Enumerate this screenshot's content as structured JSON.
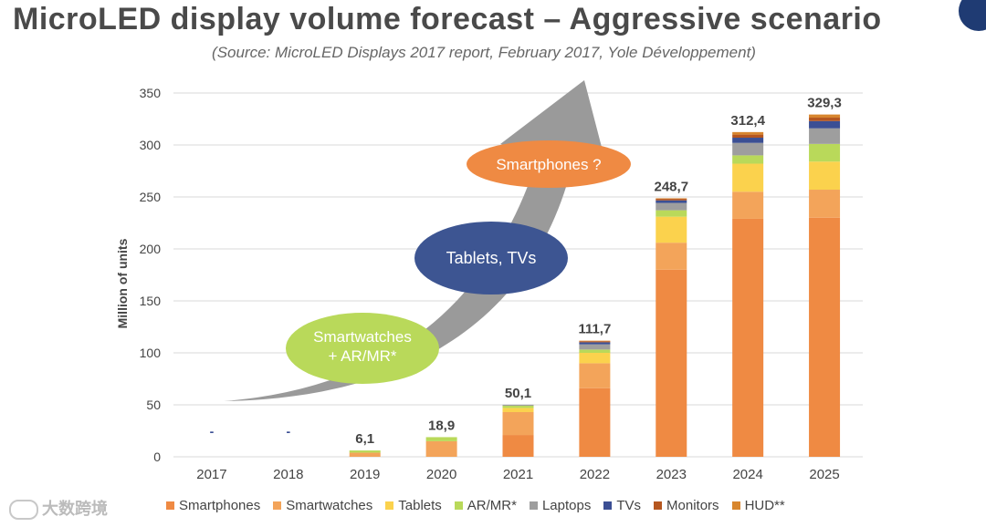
{
  "title": "MicroLED display volume forecast – Aggressive scenario",
  "subtitle": "(Source: MicroLED Displays 2017 report, February 2017, Yole Développement)",
  "watermark": "大数跨境",
  "colors": {
    "Smartphones": "#ef8a43",
    "Smartwatches": "#f3a45a",
    "Tablets": "#fbd24d",
    "AR/MR*": "#b9d95a",
    "Laptops": "#9e9e9e",
    "TVs": "#3b4f94",
    "Monitors": "#b5561f",
    "HUD**": "#d8862e"
  },
  "annotations": {
    "arrow_color": "#9a9a9a",
    "bubble_smartwatches": {
      "line1": "Smartwatches",
      "line2": "+ AR/MR*",
      "color": "#b9d95a"
    },
    "bubble_tablets": {
      "text": "Tablets, TVs",
      "color": "#3d5592"
    },
    "bubble_smartphones": {
      "text": "Smartphones ?",
      "color": "#ef8a43"
    }
  },
  "chart_data": {
    "type": "bar",
    "stacked": true,
    "title": "MicroLED display volume forecast – Aggressive scenario",
    "ylabel": "Million of units",
    "xlabel": "",
    "ylim": [
      0,
      350
    ],
    "yticks": [
      0,
      50,
      100,
      150,
      200,
      250,
      300,
      350
    ],
    "grid": true,
    "legend_position": "bottom",
    "categories": [
      "2017",
      "2018",
      "2019",
      "2020",
      "2021",
      "2022",
      "2023",
      "2024",
      "2025"
    ],
    "totals_labels": [
      "-",
      "-",
      "6,1",
      "18,9",
      "50,1",
      "111,7",
      "248,7",
      "312,4",
      "329,3"
    ],
    "totals": [
      0,
      0,
      6.1,
      18.9,
      50.1,
      111.7,
      248.7,
      312.4,
      329.3
    ],
    "series": [
      {
        "name": "Smartphones",
        "values": [
          0,
          0,
          0,
          0,
          21,
          66,
          180,
          229,
          230
        ]
      },
      {
        "name": "Smartwatches",
        "values": [
          0,
          0,
          4,
          15,
          22,
          24,
          26,
          26,
          27
        ]
      },
      {
        "name": "Tablets",
        "values": [
          0,
          0,
          0,
          0,
          4,
          10,
          25,
          27,
          27
        ]
      },
      {
        "name": "AR/MR*",
        "values": [
          0,
          0,
          2.1,
          3.9,
          2.1,
          3.2,
          6.2,
          8,
          17
        ]
      },
      {
        "name": "Laptops",
        "values": [
          0,
          0,
          0,
          0,
          1,
          5,
          7,
          12,
          15
        ]
      },
      {
        "name": "TVs",
        "values": [
          0,
          0,
          0,
          0,
          0,
          2,
          2.5,
          5,
          7
        ]
      },
      {
        "name": "Monitors",
        "values": [
          0,
          0,
          0,
          0,
          0,
          1,
          1.5,
          3,
          3.3
        ]
      },
      {
        "name": "HUD**",
        "values": [
          0,
          0,
          0,
          0,
          0,
          0.5,
          0.5,
          2.4,
          3
        ]
      }
    ]
  }
}
